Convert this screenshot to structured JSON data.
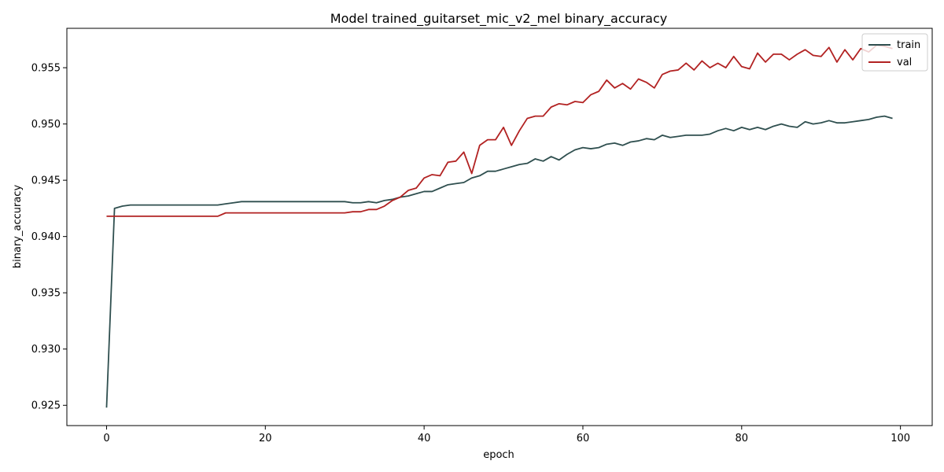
{
  "chart_data": {
    "type": "line",
    "title": "Model trained_guitarset_mic_v2_mel binary_accuracy",
    "xlabel": "epoch",
    "ylabel": "binary_accuracy",
    "xlim": [
      -5,
      104
    ],
    "ylim": [
      0.9232,
      0.9585
    ],
    "xticks": [
      0,
      20,
      40,
      60,
      80,
      100
    ],
    "yticks": [
      0.925,
      0.93,
      0.935,
      0.94,
      0.945,
      0.95,
      0.955
    ],
    "ytick_labels": [
      "0.925",
      "0.930",
      "0.935",
      "0.940",
      "0.945",
      "0.950",
      "0.955"
    ],
    "grid": false,
    "legend": "top-right",
    "series": [
      {
        "name": "train",
        "color": "#2f4f4f",
        "values": [
          0.9248,
          0.9425,
          0.9427,
          0.9428,
          0.9428,
          0.9428,
          0.9428,
          0.9428,
          0.9428,
          0.9428,
          0.9428,
          0.9428,
          0.9428,
          0.9428,
          0.9428,
          0.9429,
          0.943,
          0.9431,
          0.9431,
          0.9431,
          0.9431,
          0.9431,
          0.9431,
          0.9431,
          0.9431,
          0.9431,
          0.9431,
          0.9431,
          0.9431,
          0.9431,
          0.9431,
          0.943,
          0.943,
          0.9431,
          0.943,
          0.9432,
          0.9433,
          0.9435,
          0.9436,
          0.9438,
          0.944,
          0.944,
          0.9443,
          0.9446,
          0.9447,
          0.9448,
          0.9452,
          0.9454,
          0.9458,
          0.9458,
          0.946,
          0.9462,
          0.9464,
          0.9465,
          0.9469,
          0.9467,
          0.9471,
          0.9468,
          0.9473,
          0.9477,
          0.9479,
          0.9478,
          0.9479,
          0.9482,
          0.9483,
          0.9481,
          0.9484,
          0.9485,
          0.9487,
          0.9486,
          0.949,
          0.9488,
          0.9489,
          0.949,
          0.949,
          0.949,
          0.9491,
          0.9494,
          0.9496,
          0.9494,
          0.9497,
          0.9495,
          0.9497,
          0.9495,
          0.9498,
          0.95,
          0.9498,
          0.9497,
          0.9502,
          0.95,
          0.9501,
          0.9503,
          0.9501,
          0.9501,
          0.9502,
          0.9503,
          0.9504,
          0.9506,
          0.9507,
          0.9505
        ]
      },
      {
        "name": "val",
        "color": "#b22222",
        "values": [
          0.9418,
          0.9418,
          0.9418,
          0.9418,
          0.9418,
          0.9418,
          0.9418,
          0.9418,
          0.9418,
          0.9418,
          0.9418,
          0.9418,
          0.9418,
          0.9418,
          0.9418,
          0.9421,
          0.9421,
          0.9421,
          0.9421,
          0.9421,
          0.9421,
          0.9421,
          0.9421,
          0.9421,
          0.9421,
          0.9421,
          0.9421,
          0.9421,
          0.9421,
          0.9421,
          0.9421,
          0.9422,
          0.9422,
          0.9424,
          0.9424,
          0.9427,
          0.9432,
          0.9435,
          0.9441,
          0.9443,
          0.9452,
          0.9455,
          0.9454,
          0.9466,
          0.9467,
          0.9475,
          0.9456,
          0.9481,
          0.9486,
          0.9486,
          0.9497,
          0.9481,
          0.9494,
          0.9505,
          0.9507,
          0.9507,
          0.9515,
          0.9518,
          0.9517,
          0.952,
          0.9519,
          0.9526,
          0.9529,
          0.9539,
          0.9532,
          0.9536,
          0.9531,
          0.954,
          0.9537,
          0.9532,
          0.9544,
          0.9547,
          0.9548,
          0.9554,
          0.9548,
          0.9556,
          0.955,
          0.9554,
          0.955,
          0.956,
          0.9551,
          0.9549,
          0.9563,
          0.9555,
          0.9562,
          0.9562,
          0.9557,
          0.9562,
          0.9566,
          0.9561,
          0.956,
          0.9568,
          0.9555,
          0.9566,
          0.9557,
          0.9567,
          0.9564,
          0.957,
          0.9569,
          0.9567
        ]
      }
    ]
  }
}
